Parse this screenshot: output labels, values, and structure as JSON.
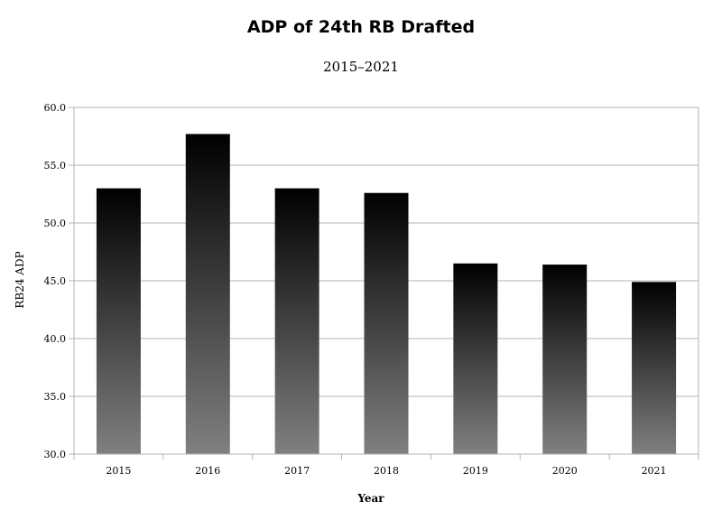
{
  "chart_data": {
    "type": "bar",
    "title": "ADP of 24th RB Drafted",
    "subtitle": "2015–2021",
    "xlabel": "Year",
    "ylabel": "RB24 ADP",
    "categories": [
      "2015",
      "2016",
      "2017",
      "2018",
      "2019",
      "2020",
      "2021"
    ],
    "values": [
      53.0,
      57.7,
      53.0,
      52.6,
      46.5,
      46.4,
      44.9
    ],
    "ylim": [
      30.0,
      60.0
    ],
    "yticks": [
      "30.0",
      "35.0",
      "40.0",
      "45.0",
      "50.0",
      "55.0",
      "60.0"
    ],
    "grid": true,
    "legend": "none",
    "colors": {
      "bar_top": "#000000",
      "bar_bottom": "#808080",
      "grid": "#b3b3b3",
      "axis": "#b3b3b3"
    }
  }
}
